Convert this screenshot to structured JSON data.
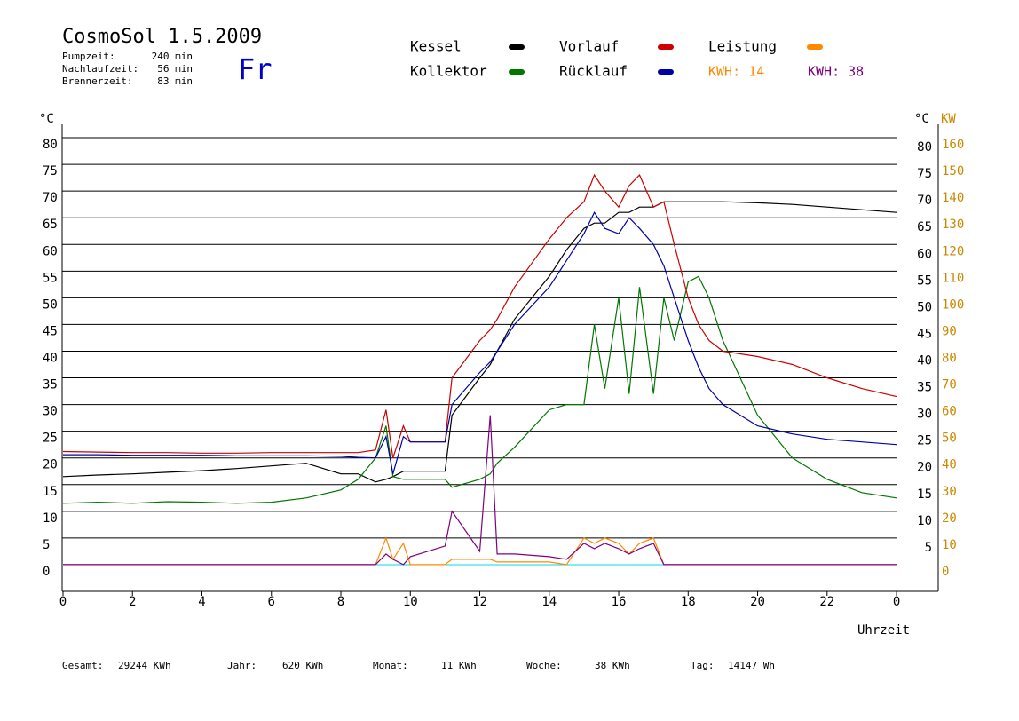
{
  "header": {
    "title": "CosmoSol 1.5.2009",
    "day": "Fr",
    "stats": [
      [
        "Pumpzeit:",
        "240 min"
      ],
      [
        "Nachlaufzeit:",
        "56 min"
      ],
      [
        "Brennerzeit:",
        "83 min"
      ]
    ],
    "kwh": [
      "KWH: 14",
      "KWH: 38"
    ]
  },
  "footer": [
    [
      "Gesamt:",
      "29244 KWh"
    ],
    [
      "Jahr:",
      "620 KWh"
    ],
    [
      "Monat:",
      "11 KWh"
    ],
    [
      "Woche:",
      "38 KWh"
    ],
    [
      "Tag:",
      "14147 Wh"
    ]
  ],
  "chart_data": {
    "type": "line",
    "ylabel": "°C",
    "ylabel_right": "°C",
    "y2label": "KW",
    "xlabel": "Uhrzeit",
    "x": [
      0,
      1,
      2,
      3,
      4,
      5,
      6,
      7,
      8,
      8.5,
      9,
      9.3,
      9.5,
      9.8,
      10,
      11,
      11.2,
      12,
      12.3,
      12.5,
      13,
      14,
      14.5,
      15,
      15.3,
      15.6,
      16,
      16.3,
      16.6,
      17,
      17.3,
      17.6,
      18,
      18.3,
      18.6,
      19,
      20,
      21,
      22,
      23,
      24
    ],
    "xlim": [
      0,
      25.2
    ],
    "xticks": [
      0,
      2,
      4,
      6,
      8,
      10,
      12,
      14,
      16,
      18,
      20,
      22,
      {
        "value": 24,
        "label": "0"
      }
    ],
    "ylim": [
      -5,
      82.5
    ],
    "yticks": [
      0,
      5,
      10,
      15,
      20,
      25,
      30,
      35,
      40,
      45,
      50,
      55,
      60,
      65,
      70,
      75,
      80
    ],
    "yticks_right": [
      5,
      10,
      15,
      20,
      25,
      30,
      35,
      40,
      45,
      50,
      55,
      60,
      65,
      70,
      75,
      80
    ],
    "y2lim": [
      -10,
      165
    ],
    "y2ticks": [
      0,
      10,
      20,
      30,
      40,
      50,
      60,
      70,
      80,
      90,
      100,
      110,
      120,
      130,
      140,
      150,
      160
    ],
    "grid": true,
    "series": [
      {
        "name": "Kessel",
        "color": "#000000",
        "values": [
          16.5,
          16.8,
          17,
          17.3,
          17.6,
          18,
          18.5,
          19,
          17,
          17,
          15.5,
          16,
          16.5,
          17.5,
          17.5,
          17.5,
          28,
          35,
          37.5,
          40,
          46,
          54,
          59,
          63,
          64,
          64,
          66,
          66,
          67,
          67,
          68,
          68,
          68,
          68,
          68,
          68,
          67.8,
          67.5,
          67,
          66.5,
          66
        ]
      },
      {
        "name": "Kollektor",
        "color": "#007700",
        "values": [
          11.5,
          11.7,
          11.5,
          11.8,
          11.7,
          11.5,
          11.7,
          12.5,
          14,
          16,
          20,
          26,
          16.5,
          16,
          16,
          16,
          14.5,
          16,
          17,
          19,
          22,
          29,
          30,
          30,
          45,
          33,
          50,
          32,
          52,
          32,
          50,
          42,
          53,
          54,
          50,
          42,
          28,
          20,
          16,
          13.5,
          12.5
        ]
      },
      {
        "name": "Vorlauf",
        "color": "#cc0000",
        "values": [
          21.2,
          21.1,
          21,
          21,
          20.9,
          20.9,
          21,
          21,
          21,
          21,
          21.5,
          29,
          20,
          26,
          23,
          23,
          35,
          42,
          44,
          46,
          52,
          61,
          65,
          68,
          73,
          70,
          67,
          71,
          73,
          67,
          68,
          60,
          50,
          45,
          42,
          40,
          39,
          37.5,
          35,
          33,
          31.5
        ]
      },
      {
        "name": "Rücklauf",
        "color": "#0000aa",
        "values": [
          20.6,
          20.6,
          20.5,
          20.5,
          20.5,
          20.4,
          20.4,
          20.4,
          20.3,
          20.1,
          20,
          24,
          17,
          24,
          23,
          23,
          30,
          36,
          38,
          40,
          45,
          52,
          57,
          62,
          66,
          63,
          62,
          65,
          63,
          60,
          56,
          50,
          42,
          37,
          33,
          30,
          26,
          24.5,
          23.5,
          23,
          22.5
        ]
      },
      {
        "name": "Leistung",
        "color": "#ff8800",
        "axis": "y2",
        "values": [
          0,
          0,
          0,
          0,
          0,
          0,
          0,
          0,
          0,
          0,
          0,
          10,
          2,
          8,
          0,
          0,
          2,
          2,
          2,
          1,
          1,
          1,
          0,
          10,
          8,
          10,
          8,
          4,
          8,
          10,
          0,
          0,
          0,
          0,
          0,
          0,
          0,
          0,
          0,
          0,
          0
        ]
      },
      {
        "color": "#800080",
        "axis": "y2",
        "values": [
          0,
          0,
          0,
          0,
          0,
          0,
          0,
          0,
          0,
          0,
          0,
          4,
          2,
          0,
          3,
          7,
          20,
          5,
          56,
          4,
          4,
          3,
          2,
          8,
          6,
          8,
          6,
          4,
          6,
          8,
          0,
          0,
          0,
          0,
          0,
          0,
          0,
          0,
          0,
          0,
          0
        ]
      }
    ]
  }
}
